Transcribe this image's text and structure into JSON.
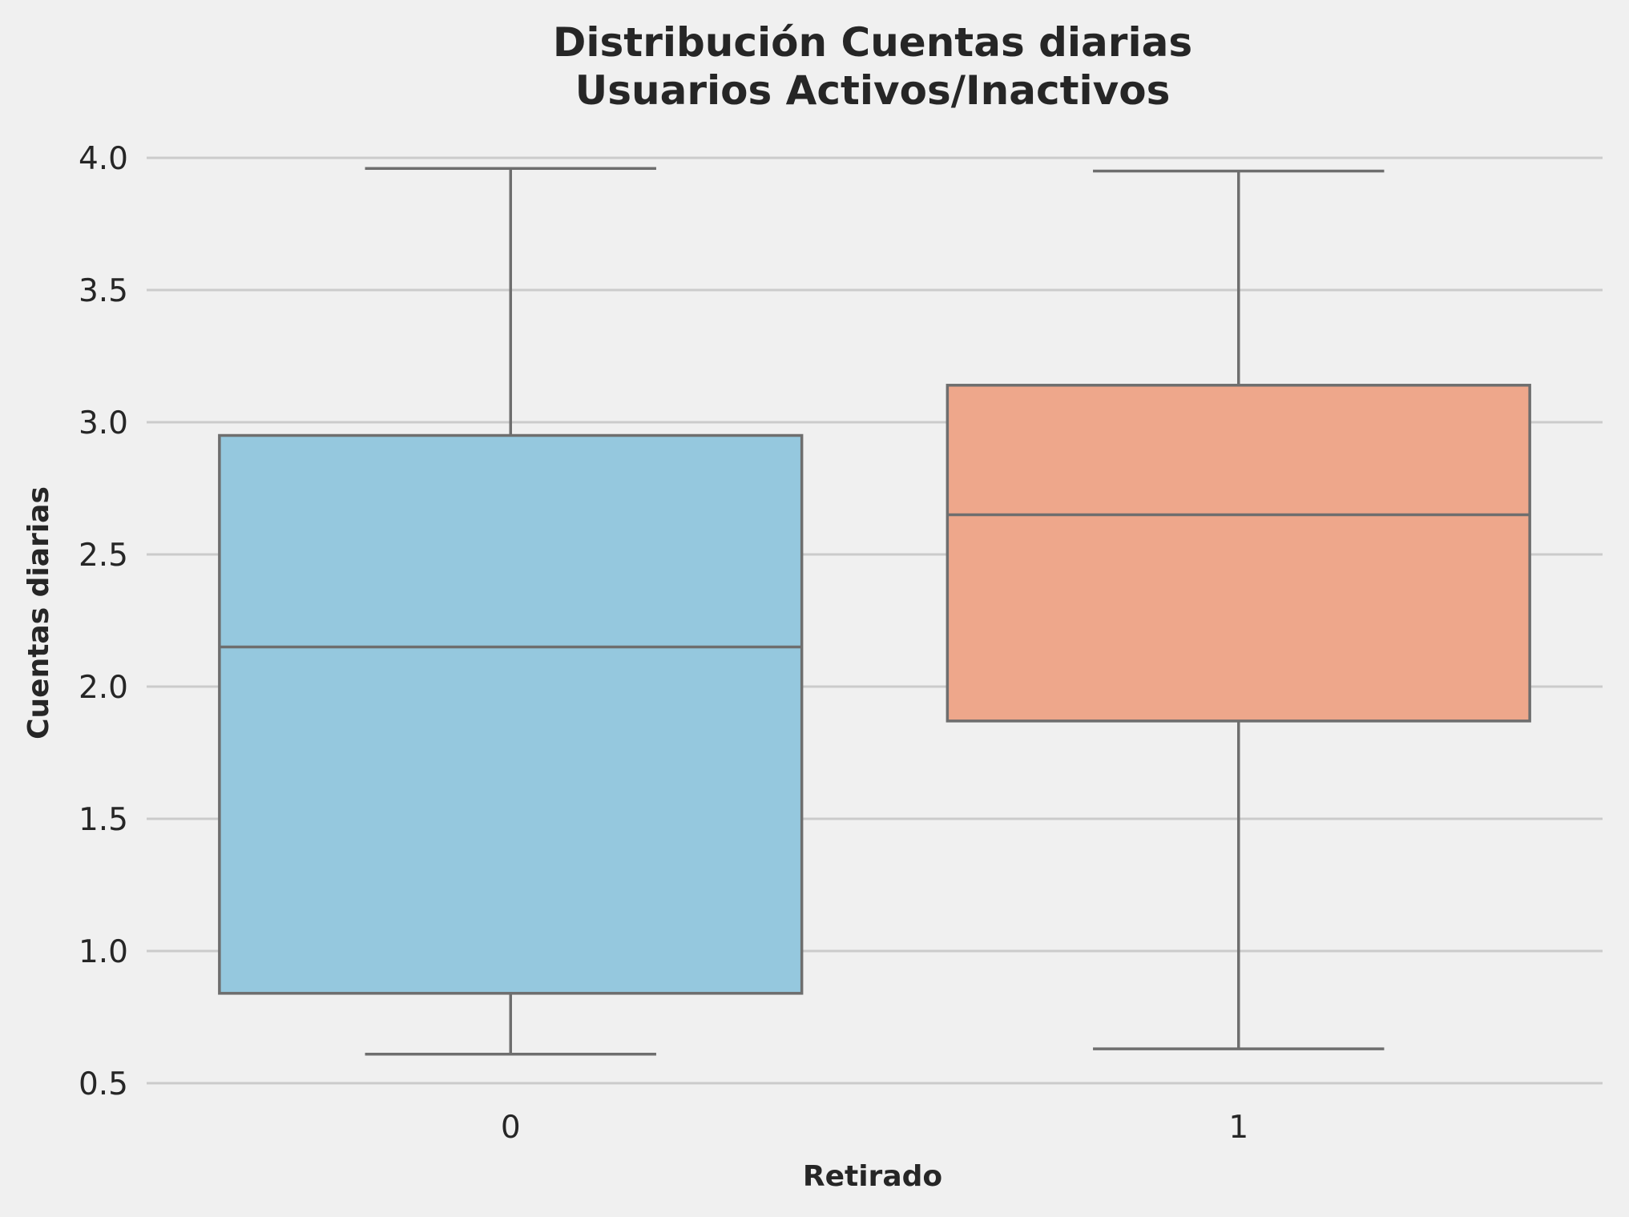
{
  "chart_data": {
    "type": "box",
    "title": "Distribución Cuentas diarias\nUsuarios Activos/Inactivos",
    "title_lines": [
      "Distribución Cuentas diarias",
      "Usuarios Activos/Inactivos"
    ],
    "xlabel": "Retirado",
    "ylabel": "Cuentas diarias",
    "categories": [
      "0",
      "1"
    ],
    "ylim": [
      0.47,
      4.08
    ],
    "yticks": [
      "0.5",
      "1.0",
      "1.5",
      "2.0",
      "2.5",
      "3.0",
      "3.5",
      "4.0"
    ],
    "ytick_values": [
      0.5,
      1.0,
      1.5,
      2.0,
      2.5,
      3.0,
      3.5,
      4.0
    ],
    "grid": "horizontal",
    "boxes": [
      {
        "category": "0",
        "whisker_low": 0.61,
        "q1": 0.84,
        "median": 2.15,
        "q3": 2.95,
        "whisker_high": 3.96,
        "color": "#95c8de"
      },
      {
        "category": "1",
        "whisker_low": 0.63,
        "q1": 1.87,
        "median": 2.65,
        "q3": 3.14,
        "whisker_high": 3.95,
        "color": "#eea78b"
      }
    ]
  },
  "colors": {
    "background": "#f0f0f0",
    "grid": "#cbcbcb",
    "box_edge": "#6e6e6e",
    "text": "#262626"
  }
}
